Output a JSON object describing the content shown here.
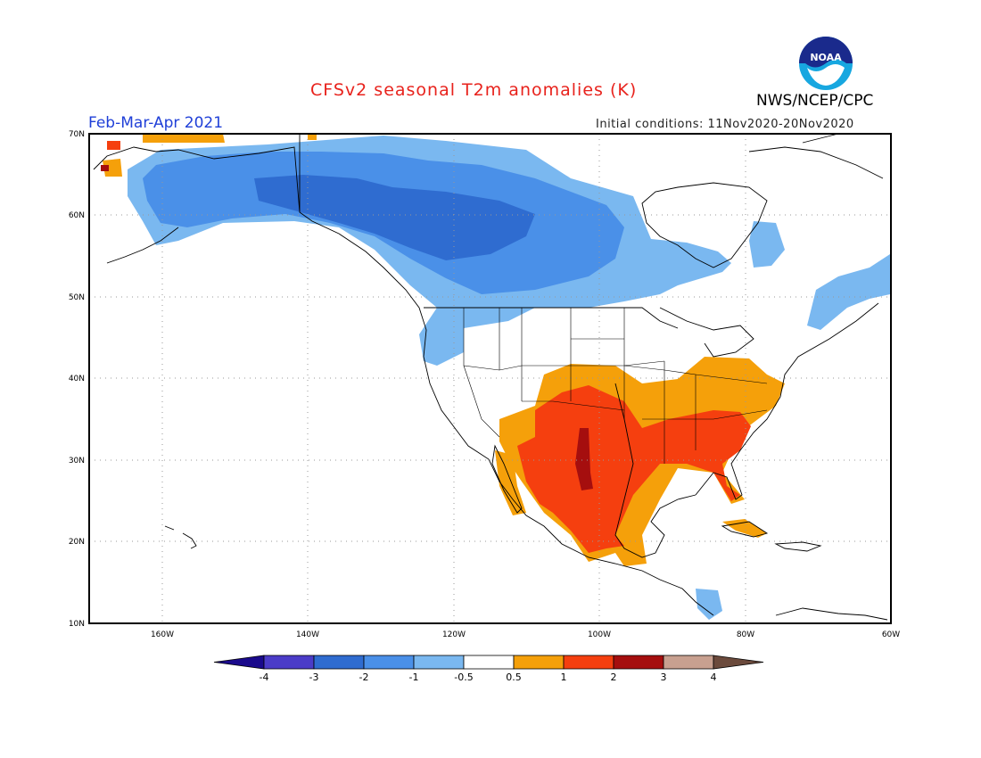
{
  "title": "CFSv2 seasonal T2m anomalies (K)",
  "agency": "NWS/NCEP/CPC",
  "logo_text": "NOAA",
  "season": "Feb-Mar-Apr 2021",
  "initial_conditions": "Initial conditions: 11Nov2020-20Nov2020",
  "lat_labels": [
    "70N",
    "60N",
    "50N",
    "40N",
    "30N",
    "20N",
    "10N"
  ],
  "lon_labels": [
    "160W",
    "140W",
    "120W",
    "100W",
    "80W",
    "60W"
  ],
  "colorbar": {
    "labels": [
      "-4",
      "-3",
      "-2",
      "-1",
      "-0.5",
      "0.5",
      "1",
      "2",
      "3",
      "4"
    ],
    "colors": [
      "#1a0a8c",
      "#4b3cc8",
      "#2f6cd0",
      "#4a90e8",
      "#7ab8f0",
      "#ffffff",
      "#f5a00a",
      "#f53f0f",
      "#a50e0e",
      "#c8a090",
      "#6b4a3c"
    ]
  },
  "chart_data": {
    "type": "heatmap",
    "title": "CFSv2 seasonal T2m anomalies (K)",
    "region": "North America",
    "period": "Feb-Mar-Apr 2021",
    "levels": [
      -4,
      -3,
      -2,
      -1,
      -0.5,
      0.5,
      1,
      2,
      3,
      4
    ],
    "lat_range": [
      10,
      70
    ],
    "lon_range": [
      -172,
      -60
    ],
    "regions": [
      {
        "name": "Alaska / Canada",
        "anomaly_range": [
          -2,
          -0.5
        ]
      },
      {
        "name": "Southern Plains / Texas / Mexico",
        "anomaly_range": [
          1,
          3
        ]
      },
      {
        "name": "Southeast US",
        "anomaly_range": [
          1,
          2
        ]
      },
      {
        "name": "Mid-Atlantic / Ohio Valley",
        "anomaly_range": [
          0.5,
          1
        ]
      }
    ]
  }
}
